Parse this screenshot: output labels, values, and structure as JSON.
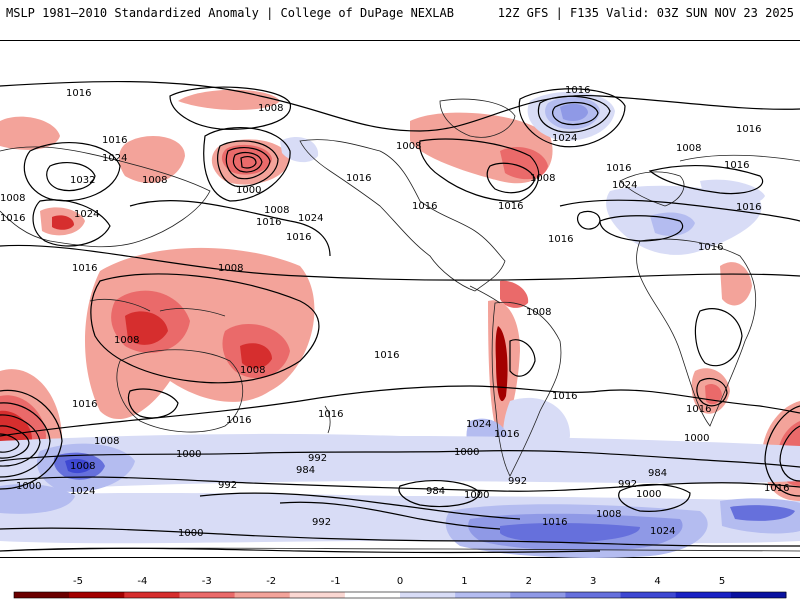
{
  "header": {
    "left": "MSLP 1981–2010 Standardized Anomaly | College of DuPage NEXLAB",
    "right": "12Z GFS | F135 Valid: 03Z SUN NOV 23 2025"
  },
  "colorbar": {
    "ticks": [
      "-5",
      "-4",
      "-3",
      "-2",
      "-1",
      "0",
      "1",
      "2",
      "3",
      "4",
      "5"
    ],
    "colors": [
      "#6b0000",
      "#a30000",
      "#d62e2e",
      "#ea6a6a",
      "#f3a39a",
      "#fad7d2",
      "#ffffff",
      "#d8dcf6",
      "#b4bcf0",
      "#8f99e6",
      "#6670dc",
      "#3e48d2",
      "#1a22c4",
      "#0a12a0"
    ]
  },
  "isobar_labels": [
    "1016",
    "1008",
    "1016",
    "1024",
    "1032",
    "1008",
    "1008",
    "1024",
    "1016",
    "1000",
    "1008",
    "1016",
    "1024",
    "1016",
    "1008",
    "1016",
    "1016",
    "1008",
    "1016",
    "1024",
    "1016",
    "1016",
    "1008",
    "1016",
    "1024",
    "1016",
    "1016",
    "1016",
    "1016",
    "1008",
    "1008",
    "1016",
    "1008",
    "1016",
    "1016",
    "1016",
    "1024",
    "1016",
    "1016",
    "1008",
    "1016",
    "1000",
    "1008",
    "1008",
    "1000",
    "1024",
    "992",
    "1000",
    "992",
    "984",
    "1000",
    "984",
    "992",
    "992",
    "1000",
    "984",
    "1000",
    "992",
    "1000",
    "1016",
    "1008",
    "1024",
    "1016",
    "1016"
  ]
}
